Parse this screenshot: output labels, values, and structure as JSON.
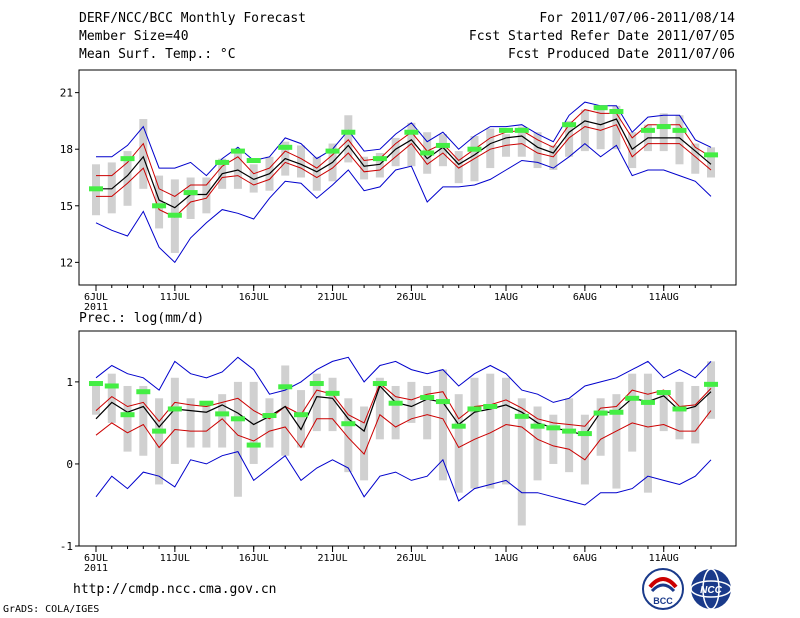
{
  "header": {
    "title": "DERF/NCC/BCC Monthly Forecast",
    "member_size": "Member Size=40",
    "variable1": "Mean Surf. Temp.: °C",
    "period": "For 2011/07/06-2011/08/14",
    "refer_date": "Fcst Started Refer Date 2011/07/05",
    "produced_date": "Fcst Produced Date 2011/07/06"
  },
  "footer": {
    "url": "http://cmdp.ncc.cma.gov.cn",
    "credit": "GrADS: COLA/IGES",
    "logo1_text": "BCC",
    "logo2_text": "NCC"
  },
  "colors": {
    "envelope": "#0000cc",
    "spread": "#cc0000",
    "mean": "#000000",
    "box": "#d0d0d0",
    "obs": "#44ee44"
  },
  "chart_data": [
    {
      "type": "line",
      "title": "Mean Surf. Temp.: °C",
      "xlabel": "",
      "ylabel": "",
      "ylim": [
        10.8,
        22.2
      ],
      "yticks": [
        12,
        15,
        18,
        21
      ],
      "x_ticks": [
        {
          "day": 0,
          "label": "6JUL",
          "sub": "2011"
        },
        {
          "day": 5,
          "label": "11JUL"
        },
        {
          "day": 10,
          "label": "16JUL"
        },
        {
          "day": 15,
          "label": "21JUL"
        },
        {
          "day": 20,
          "label": "26JUL"
        },
        {
          "day": 26,
          "label": "1AUG"
        },
        {
          "day": 31,
          "label": "6AUG"
        },
        {
          "day": 36,
          "label": "11AUG"
        }
      ],
      "series": [
        {
          "name": "max",
          "color": "#0000cc",
          "values": [
            17.6,
            17.6,
            18.2,
            19.2,
            17.0,
            17.0,
            17.3,
            16.6,
            17.5,
            18.1,
            17.4,
            17.6,
            18.6,
            18.3,
            17.5,
            18.0,
            19.0,
            17.9,
            18.0,
            18.8,
            19.4,
            18.4,
            18.9,
            18.0,
            18.7,
            19.2,
            19.2,
            19.3,
            18.8,
            18.4,
            19.8,
            20.5,
            20.3,
            20.3,
            18.9,
            19.7,
            19.8,
            19.8,
            18.5,
            18.1
          ]
        },
        {
          "name": "upper",
          "color": "#cc0000",
          "values": [
            16.6,
            16.6,
            17.3,
            18.3,
            15.9,
            15.5,
            16.1,
            16.1,
            17.1,
            17.6,
            16.7,
            17.0,
            17.9,
            17.5,
            17.0,
            17.7,
            18.5,
            17.4,
            17.5,
            18.3,
            18.9,
            17.9,
            18.3,
            17.4,
            18.0,
            18.6,
            18.9,
            19.0,
            18.5,
            18.1,
            19.3,
            20.1,
            19.9,
            19.9,
            18.6,
            19.3,
            19.3,
            19.3,
            18.1,
            17.6
          ]
        },
        {
          "name": "mean",
          "color": "#000000",
          "values": [
            15.9,
            15.9,
            16.6,
            17.6,
            15.3,
            14.9,
            15.6,
            15.6,
            16.7,
            16.9,
            16.4,
            16.7,
            17.5,
            17.2,
            16.8,
            17.3,
            18.2,
            17.1,
            17.2,
            18.0,
            18.5,
            17.5,
            18.1,
            17.2,
            17.7,
            18.3,
            18.6,
            18.7,
            18.1,
            17.8,
            18.9,
            19.5,
            19.3,
            19.6,
            18.0,
            18.6,
            18.6,
            18.6,
            17.9,
            17.2
          ]
        },
        {
          "name": "lower",
          "color": "#cc0000",
          "values": [
            15.5,
            15.5,
            16.2,
            17.0,
            14.8,
            14.4,
            15.2,
            15.4,
            16.5,
            16.6,
            16.1,
            16.4,
            17.3,
            17.0,
            16.5,
            17.0,
            17.8,
            16.8,
            16.9,
            17.6,
            18.3,
            17.2,
            17.8,
            17.0,
            17.5,
            18.0,
            18.2,
            18.3,
            17.8,
            17.6,
            18.6,
            19.2,
            19.0,
            19.3,
            17.6,
            18.3,
            18.3,
            18.3,
            17.6,
            16.9
          ]
        },
        {
          "name": "min",
          "color": "#0000cc",
          "values": [
            14.1,
            13.7,
            13.4,
            14.7,
            12.8,
            12.0,
            13.3,
            14.1,
            14.8,
            14.6,
            14.3,
            15.4,
            16.3,
            16.2,
            15.4,
            16.1,
            16.9,
            15.8,
            16.0,
            16.9,
            17.1,
            15.2,
            16.0,
            16.0,
            16.1,
            16.4,
            16.9,
            17.4,
            17.3,
            17.0,
            17.6,
            18.3,
            17.6,
            18.2,
            16.6,
            16.9,
            16.9,
            16.6,
            16.3,
            15.5
          ]
        }
      ],
      "boxes": [
        [
          14.5,
          17.2
        ],
        [
          14.6,
          17.3
        ],
        [
          15.0,
          17.9
        ],
        [
          15.9,
          19.6
        ],
        [
          13.8,
          16.6
        ],
        [
          12.5,
          16.4
        ],
        [
          14.3,
          16.5
        ],
        [
          14.6,
          16.5
        ],
        [
          15.9,
          17.5
        ],
        [
          15.9,
          17.8
        ],
        [
          15.7,
          17.2
        ],
        [
          15.8,
          17.6
        ],
        [
          16.6,
          18.4
        ],
        [
          16.5,
          18.2
        ],
        [
          15.8,
          17.6
        ],
        [
          16.3,
          18.3
        ],
        [
          17.3,
          19.8
        ],
        [
          16.4,
          17.6
        ],
        [
          16.5,
          17.8
        ],
        [
          17.1,
          18.6
        ],
        [
          17.1,
          19.4
        ],
        [
          16.7,
          18.9
        ],
        [
          17.1,
          18.8
        ],
        [
          16.2,
          17.9
        ],
        [
          16.3,
          18.7
        ],
        [
          17.0,
          19.1
        ],
        [
          17.6,
          18.8
        ],
        [
          17.6,
          19.2
        ],
        [
          17.0,
          18.9
        ],
        [
          16.9,
          18.2
        ],
        [
          17.6,
          19.5
        ],
        [
          17.9,
          20.1
        ],
        [
          18.0,
          20.2
        ],
        [
          18.0,
          20.3
        ],
        [
          17.0,
          18.9
        ],
        [
          17.9,
          19.3
        ],
        [
          17.9,
          19.9
        ],
        [
          17.2,
          19.8
        ],
        [
          16.7,
          18.3
        ],
        [
          16.5,
          18.1
        ]
      ],
      "observed": [
        {
          "day": 0,
          "value": 15.9
        },
        {
          "day": 2,
          "value": 17.5
        },
        {
          "day": 4,
          "value": 15.0
        },
        {
          "day": 5,
          "value": 14.5
        },
        {
          "day": 6,
          "value": 15.7
        },
        {
          "day": 8,
          "value": 17.3
        },
        {
          "day": 9,
          "value": 17.9
        },
        {
          "day": 10,
          "value": 17.4
        },
        {
          "day": 12,
          "value": 18.1
        },
        {
          "day": 15,
          "value": 17.9
        },
        {
          "day": 16,
          "value": 18.9
        },
        {
          "day": 18,
          "value": 17.5
        },
        {
          "day": 20,
          "value": 18.9
        },
        {
          "day": 21,
          "value": 17.8
        },
        {
          "day": 22,
          "value": 18.2
        },
        {
          "day": 24,
          "value": 18.0
        },
        {
          "day": 26,
          "value": 19.0
        },
        {
          "day": 27,
          "value": 19.0
        },
        {
          "day": 30,
          "value": 19.3
        },
        {
          "day": 32,
          "value": 20.2
        },
        {
          "day": 33,
          "value": 20.0
        },
        {
          "day": 35,
          "value": 19.0
        },
        {
          "day": 36,
          "value": 19.2
        },
        {
          "day": 37,
          "value": 19.0
        },
        {
          "day": 39,
          "value": 17.7
        }
      ]
    },
    {
      "type": "line",
      "title": "Prec.: log(mm/d)",
      "xlabel": "",
      "ylabel": "",
      "ylim": [
        -1.0,
        1.62
      ],
      "yticks": [
        -1,
        0,
        1
      ],
      "x_ticks": [
        {
          "day": 0,
          "label": "6JUL",
          "sub": "2011"
        },
        {
          "day": 5,
          "label": "11JUL"
        },
        {
          "day": 10,
          "label": "16JUL"
        },
        {
          "day": 15,
          "label": "21JUL"
        },
        {
          "day": 20,
          "label": "26JUL"
        },
        {
          "day": 26,
          "label": "1AUG"
        },
        {
          "day": 31,
          "label": "6AUG"
        },
        {
          "day": 36,
          "label": "11AUG"
        }
      ],
      "series": [
        {
          "name": "max",
          "color": "#0000cc",
          "values": [
            1.05,
            1.2,
            1.1,
            1.05,
            0.9,
            1.25,
            1.1,
            1.05,
            1.12,
            1.3,
            1.15,
            0.85,
            0.9,
            1.0,
            1.15,
            1.25,
            1.3,
            1.0,
            1.2,
            1.25,
            1.15,
            1.1,
            1.15,
            0.95,
            1.1,
            1.2,
            1.1,
            0.9,
            0.85,
            0.75,
            0.8,
            0.95,
            1.0,
            1.05,
            1.15,
            1.25,
            1.05,
            1.15,
            1.05,
            1.25
          ]
        },
        {
          "name": "upper",
          "color": "#cc0000",
          "values": [
            0.65,
            0.82,
            0.7,
            0.75,
            0.52,
            0.75,
            0.72,
            0.7,
            0.75,
            0.8,
            0.65,
            0.55,
            0.7,
            0.6,
            0.9,
            0.85,
            0.6,
            0.5,
            0.98,
            0.82,
            0.78,
            0.85,
            0.88,
            0.55,
            0.7,
            0.72,
            0.78,
            0.68,
            0.55,
            0.5,
            0.48,
            0.46,
            0.68,
            0.7,
            0.9,
            0.85,
            0.9,
            0.7,
            0.72,
            0.92
          ]
        },
        {
          "name": "mean",
          "color": "#000000",
          "values": [
            0.55,
            0.75,
            0.63,
            0.7,
            0.45,
            0.67,
            0.65,
            0.63,
            0.72,
            0.62,
            0.48,
            0.58,
            0.7,
            0.42,
            0.82,
            0.8,
            0.55,
            0.4,
            0.95,
            0.75,
            0.7,
            0.79,
            0.75,
            0.48,
            0.63,
            0.67,
            0.72,
            0.63,
            0.5,
            0.44,
            0.4,
            0.35,
            0.63,
            0.63,
            0.8,
            0.76,
            0.83,
            0.65,
            0.7,
            0.88
          ]
        },
        {
          "name": "lower",
          "color": "#cc0000",
          "values": [
            0.35,
            0.5,
            0.38,
            0.48,
            0.2,
            0.42,
            0.4,
            0.4,
            0.55,
            0.35,
            0.28,
            0.4,
            0.45,
            0.2,
            0.55,
            0.55,
            0.32,
            0.12,
            0.6,
            0.45,
            0.55,
            0.6,
            0.55,
            0.2,
            0.3,
            0.38,
            0.48,
            0.45,
            0.3,
            0.22,
            0.18,
            0.05,
            0.3,
            0.4,
            0.5,
            0.45,
            0.48,
            0.4,
            0.4,
            0.65
          ]
        },
        {
          "name": "min",
          "color": "#0000cc",
          "values": [
            -0.4,
            -0.15,
            -0.3,
            -0.1,
            -0.15,
            -0.28,
            0.05,
            0.0,
            0.1,
            0.15,
            -0.2,
            -0.05,
            0.1,
            -0.2,
            -0.05,
            0.05,
            -0.05,
            -0.4,
            -0.15,
            -0.1,
            -0.2,
            -0.15,
            0.05,
            -0.45,
            -0.3,
            -0.25,
            -0.2,
            -0.35,
            -0.35,
            -0.4,
            -0.45,
            -0.5,
            -0.35,
            -0.35,
            -0.3,
            -0.15,
            -0.2,
            -0.25,
            -0.15,
            0.05
          ]
        }
      ],
      "boxes": [
        [
          0.6,
          1.0
        ],
        [
          0.5,
          1.1
        ],
        [
          0.15,
          0.95
        ],
        [
          0.1,
          0.95
        ],
        [
          -0.25,
          0.8
        ],
        [
          0.0,
          1.05
        ],
        [
          0.2,
          0.8
        ],
        [
          0.2,
          0.75
        ],
        [
          0.2,
          0.85
        ],
        [
          -0.4,
          1.0
        ],
        [
          0.0,
          1.0
        ],
        [
          0.2,
          0.8
        ],
        [
          0.1,
          1.2
        ],
        [
          0.2,
          0.9
        ],
        [
          0.4,
          1.1
        ],
        [
          0.4,
          1.05
        ],
        [
          -0.1,
          0.8
        ],
        [
          -0.2,
          0.7
        ],
        [
          0.3,
          1.05
        ],
        [
          0.3,
          0.95
        ],
        [
          0.5,
          1.0
        ],
        [
          0.3,
          0.95
        ],
        [
          -0.2,
          1.15
        ],
        [
          -0.35,
          0.85
        ],
        [
          -0.3,
          1.05
        ],
        [
          -0.3,
          1.1
        ],
        [
          -0.25,
          1.05
        ],
        [
          -0.75,
          0.8
        ],
        [
          -0.2,
          0.7
        ],
        [
          0.0,
          0.6
        ],
        [
          -0.1,
          0.8
        ],
        [
          -0.25,
          0.6
        ],
        [
          0.1,
          0.8
        ],
        [
          -0.3,
          0.85
        ],
        [
          0.15,
          1.1
        ],
        [
          -0.35,
          1.1
        ],
        [
          0.4,
          0.9
        ],
        [
          0.3,
          1.0
        ],
        [
          0.25,
          0.95
        ],
        [
          0.55,
          1.25
        ]
      ],
      "observed": [
        {
          "day": 0,
          "value": 0.98
        },
        {
          "day": 1,
          "value": 0.95
        },
        {
          "day": 2,
          "value": 0.6
        },
        {
          "day": 3,
          "value": 0.88
        },
        {
          "day": 4,
          "value": 0.4
        },
        {
          "day": 5,
          "value": 0.67
        },
        {
          "day": 7,
          "value": 0.74
        },
        {
          "day": 8,
          "value": 0.61
        },
        {
          "day": 9,
          "value": 0.55
        },
        {
          "day": 10,
          "value": 0.23
        },
        {
          "day": 11,
          "value": 0.59
        },
        {
          "day": 12,
          "value": 0.94
        },
        {
          "day": 13,
          "value": 0.6
        },
        {
          "day": 14,
          "value": 0.98
        },
        {
          "day": 15,
          "value": 0.86
        },
        {
          "day": 16,
          "value": 0.49
        },
        {
          "day": 18,
          "value": 0.98
        },
        {
          "day": 19,
          "value": 0.74
        },
        {
          "day": 21,
          "value": 0.81
        },
        {
          "day": 22,
          "value": 0.76
        },
        {
          "day": 23,
          "value": 0.46
        },
        {
          "day": 24,
          "value": 0.67
        },
        {
          "day": 25,
          "value": 0.7
        },
        {
          "day": 27,
          "value": 0.58
        },
        {
          "day": 28,
          "value": 0.46
        },
        {
          "day": 29,
          "value": 0.44
        },
        {
          "day": 30,
          "value": 0.4
        },
        {
          "day": 31,
          "value": 0.37
        },
        {
          "day": 32,
          "value": 0.62
        },
        {
          "day": 33,
          "value": 0.63
        },
        {
          "day": 34,
          "value": 0.8
        },
        {
          "day": 35,
          "value": 0.75
        },
        {
          "day": 36,
          "value": 0.87
        },
        {
          "day": 37,
          "value": 0.67
        },
        {
          "day": 39,
          "value": 0.97
        }
      ]
    }
  ]
}
